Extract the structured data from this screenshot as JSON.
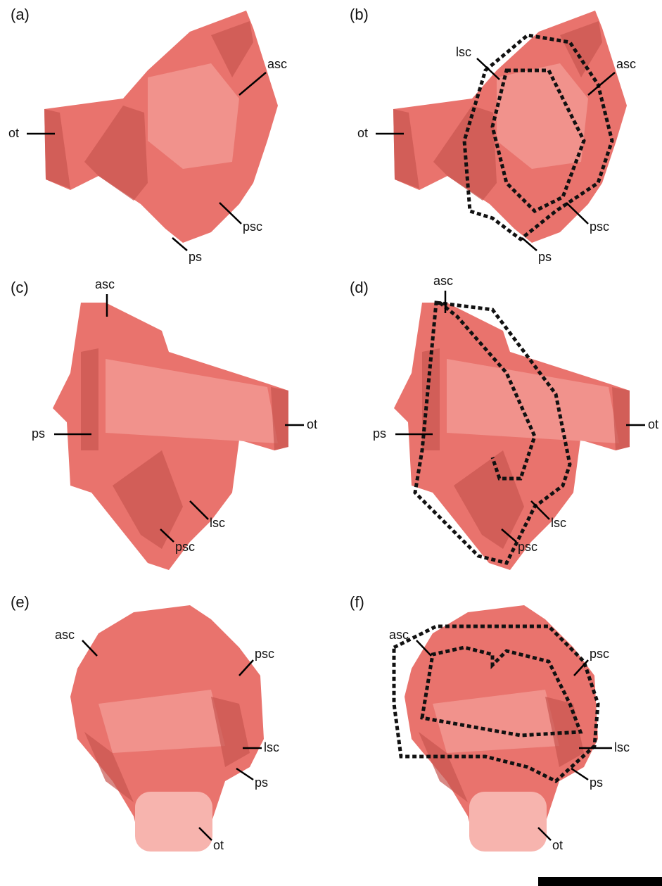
{
  "panels": [
    {
      "label": "(a)",
      "annotations": [
        "asc",
        "ot",
        "psc",
        "ps"
      ]
    },
    {
      "label": "(b)",
      "annotations": [
        "lsc",
        "asc",
        "ot",
        "psc",
        "ps"
      ]
    },
    {
      "label": "(c)",
      "annotations": [
        "asc",
        "ot",
        "ps",
        "lsc",
        "psc"
      ]
    },
    {
      "label": "(d)",
      "annotations": [
        "asc",
        "ot",
        "ps",
        "lsc",
        "psc"
      ]
    },
    {
      "label": "(e)",
      "annotations": [
        "asc",
        "psc",
        "lsc",
        "ps",
        "ot"
      ]
    },
    {
      "label": "(f)",
      "annotations": [
        "asc",
        "psc",
        "lsc",
        "ps",
        "ot"
      ]
    }
  ]
}
